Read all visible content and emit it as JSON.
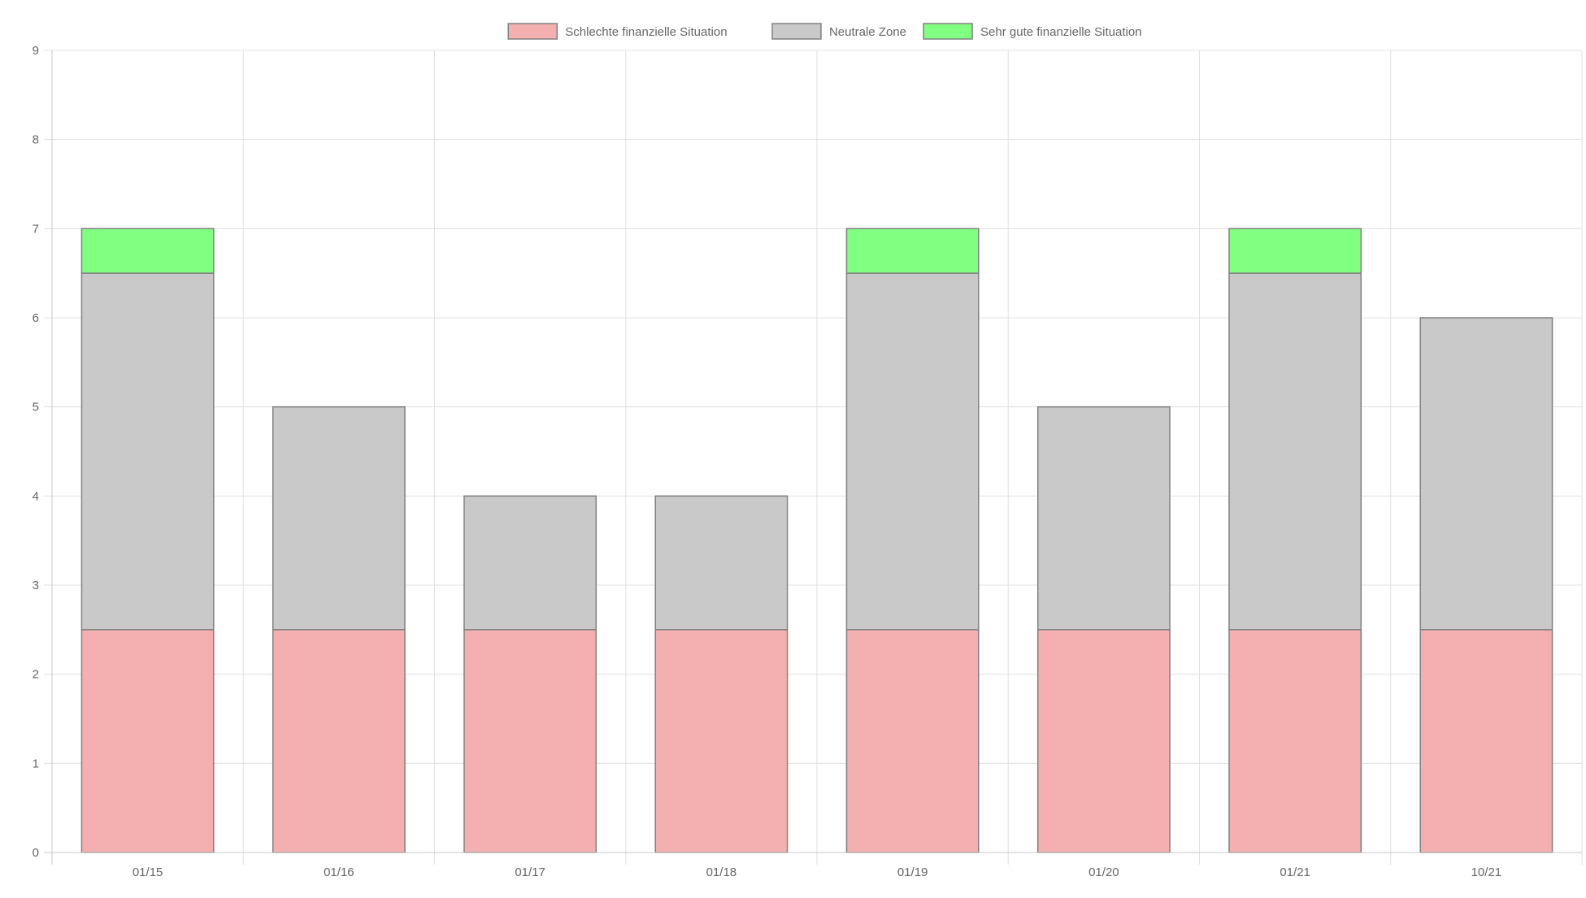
{
  "chart_data": {
    "type": "bar",
    "stacked": true,
    "categories": [
      "01/15",
      "01/16",
      "01/17",
      "01/18",
      "01/19",
      "01/20",
      "01/21",
      "10/21"
    ],
    "series": [
      {
        "name": "Schlechte finanzielle Situation",
        "color": "#f4b0b0",
        "values": [
          2.5,
          2.5,
          2.5,
          2.5,
          2.5,
          2.5,
          2.5,
          2.5
        ]
      },
      {
        "name": "Neutrale Zone",
        "color": "#c9c9c9",
        "values": [
          4,
          2.5,
          1.5,
          1.5,
          4,
          2.5,
          4,
          3.5
        ]
      },
      {
        "name": "Sehr gute finanzielle Situation",
        "color": "#80ff80",
        "values": [
          0.5,
          0,
          0,
          0,
          0.5,
          0,
          0.5,
          0
        ]
      }
    ],
    "ylim": [
      0,
      9
    ],
    "yticks": [
      "0",
      "1",
      "2",
      "3",
      "4",
      "5",
      "6",
      "7",
      "8",
      "9"
    ],
    "grid": true,
    "legend_position": "top-center",
    "bar_border_color": "#808080",
    "grid_color": "#e0e0e0",
    "axis_color": "#c8c8c8"
  }
}
